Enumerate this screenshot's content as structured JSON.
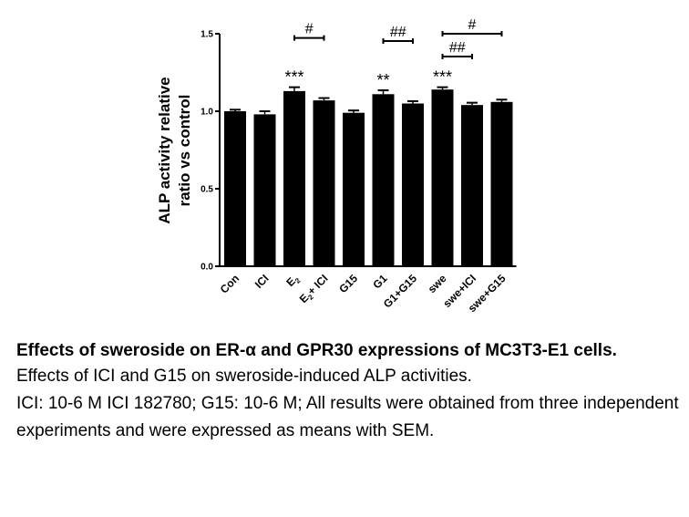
{
  "chart_data": {
    "type": "bar",
    "ylabel": "ALP activity relative ratio vs control",
    "ylim": [
      0,
      1.5
    ],
    "yticks": [
      "0.0",
      "0.5",
      "1.0",
      "1.5"
    ],
    "yticks_values": [
      0,
      0.5,
      1.0,
      1.5
    ],
    "categories": [
      "Con",
      "ICI",
      "E2",
      "E2+ ICI",
      "G15",
      "G1",
      "G1+G15",
      "swe",
      "swe+ICI",
      "swe+G15"
    ],
    "values": [
      1.0,
      0.98,
      1.13,
      1.07,
      0.99,
      1.11,
      1.05,
      1.14,
      1.04,
      1.06
    ],
    "errors": [
      0.01,
      0.02,
      0.025,
      0.015,
      0.015,
      0.025,
      0.015,
      0.015,
      0.015,
      0.015
    ],
    "bar_color": "#000000",
    "significance_stars": [
      {
        "category": "E2",
        "label": "***"
      },
      {
        "category": "G1",
        "label": "**"
      },
      {
        "category": "swe",
        "label": "***"
      }
    ],
    "comparison_brackets": [
      {
        "from": "E2",
        "to": "E2+ ICI",
        "label": "#"
      },
      {
        "from": "G1",
        "to": "G1+G15",
        "label": "##"
      },
      {
        "from": "swe",
        "to": "swe+ICI",
        "label": "##"
      },
      {
        "from": "swe",
        "to": "swe+G15",
        "label": "#"
      }
    ]
  },
  "caption": {
    "title": "Effects of sweroside on ER-α and GPR30 expressions of MC3T3-E1 cells.",
    "line1": "Effects of ICI and G15 on sweroside-induced ALP activities.",
    "line2": "ICI: 10-6 M ICI 182780; G15: 10-6 M; All results were obtained from three independent experiments and were expressed as means with SEM."
  }
}
